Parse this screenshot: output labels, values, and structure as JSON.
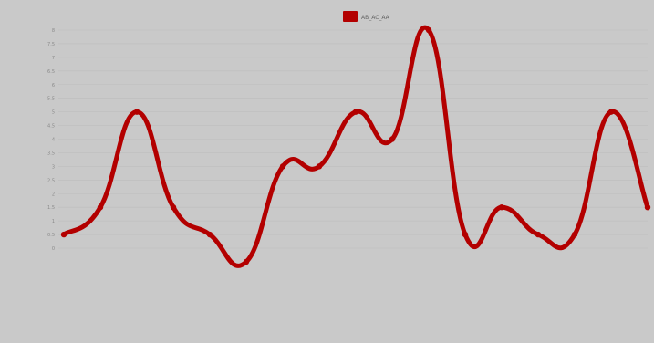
{
  "chart_data": {
    "type": "line",
    "legend_position": "top-center",
    "grid": true,
    "colors": {
      "series": "#b30000",
      "background": "#c9c9c9",
      "grid": "#bdbdbd"
    },
    "series": [
      {
        "name": "AB_AC_AA",
        "values": [
          0.5,
          1.5,
          5,
          1.5,
          0.5,
          -0.5,
          3,
          3,
          5,
          4,
          8,
          0.5,
          1.5,
          0.5,
          0.5,
          5,
          1.5
        ]
      }
    ],
    "y_ticks": [
      0,
      0.5,
      1,
      1.5,
      2,
      2.5,
      3,
      3.5,
      4,
      4.5,
      5,
      5.5,
      6,
      6.5,
      7,
      7.5,
      8
    ],
    "ylim": [
      0,
      8
    ],
    "x_labels": [
      "",
      "",
      "",
      "",
      "",
      "",
      "",
      "",
      "",
      "",
      "",
      "",
      "",
      "",
      "",
      "",
      ""
    ]
  }
}
